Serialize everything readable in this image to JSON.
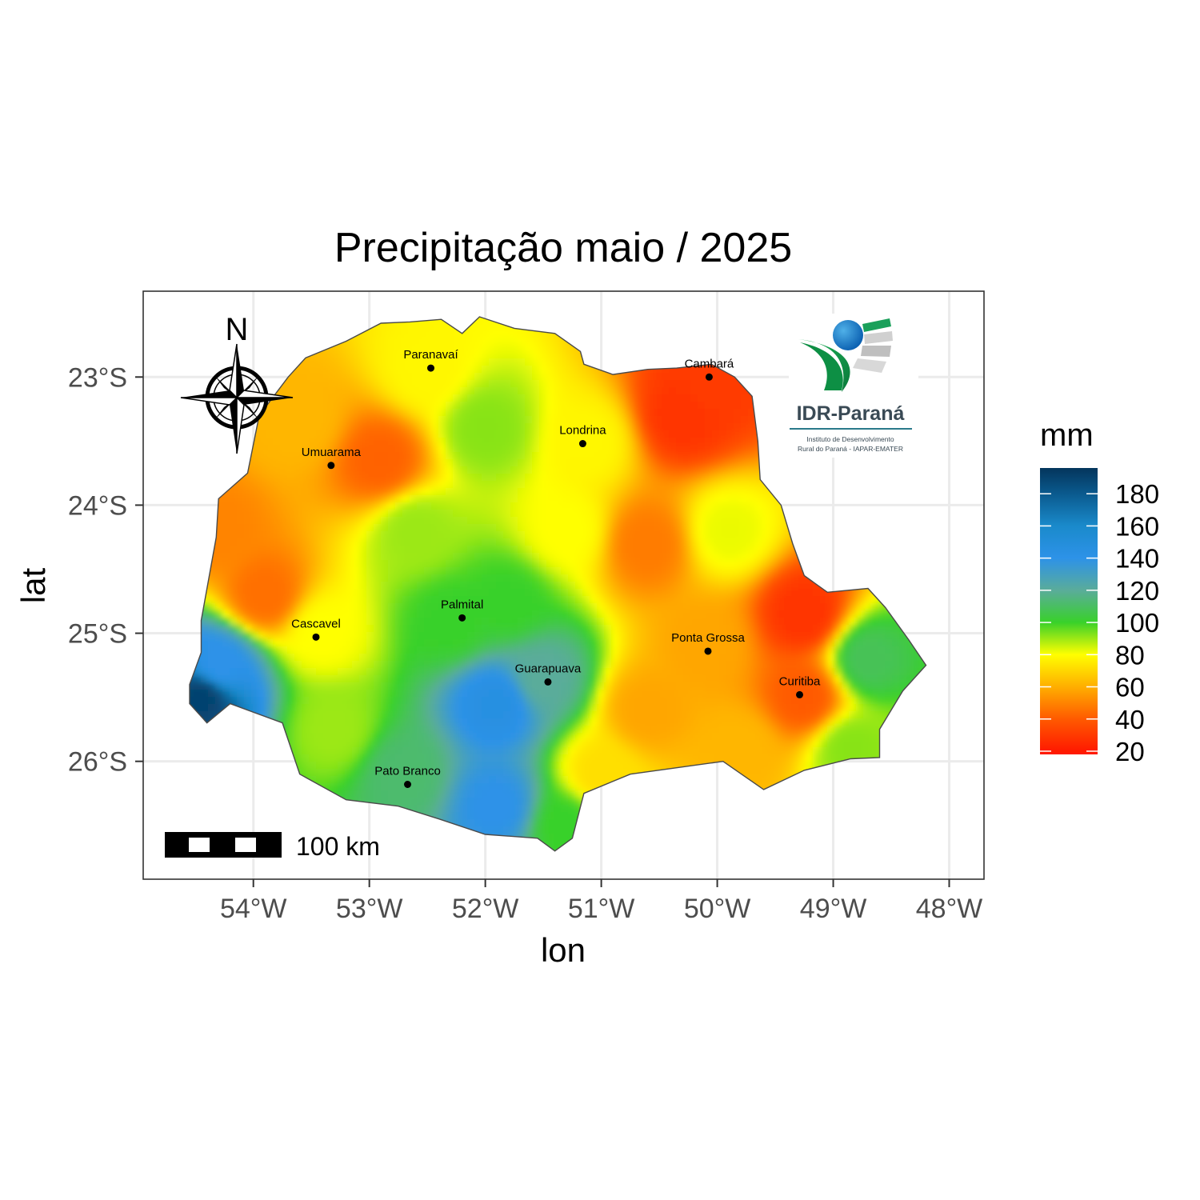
{
  "title": "Precipitação maio / 2025",
  "xlabel": "lon",
  "ylabel": "lat",
  "chart_data": {
    "type": "heatmap",
    "title": "Precipitação maio / 2025",
    "xlabel": "lon",
    "ylabel": "lat",
    "xlim": [
      -54.95,
      -47.7
    ],
    "ylim": [
      -26.92,
      -22.33
    ],
    "x_ticks": [
      -54,
      -53,
      -52,
      -51,
      -50,
      -49,
      -48
    ],
    "x_tick_labels": [
      "54°W",
      "53°W",
      "52°W",
      "51°W",
      "50°W",
      "49°W",
      "48°W"
    ],
    "y_ticks": [
      -23,
      -24,
      -25,
      -26
    ],
    "y_tick_labels": [
      "23°S",
      "24°S",
      "25°S",
      "26°S"
    ],
    "grid": true,
    "legend": {
      "title": "mm",
      "position": "right",
      "min": 18,
      "max": 196,
      "ticks": [
        180,
        160,
        140,
        120,
        100,
        80,
        60,
        40,
        20
      ],
      "tick_labels": [
        "180",
        "160",
        "140",
        "120",
        "100",
        "80",
        "60",
        "40",
        "20"
      ]
    },
    "colorscale": [
      {
        "value": 20,
        "color": "#ff1a00"
      },
      {
        "value": 40,
        "color": "#ff5a00"
      },
      {
        "value": 60,
        "color": "#ffae00"
      },
      {
        "value": 80,
        "color": "#ffff00"
      },
      {
        "value": 100,
        "color": "#39d12a"
      },
      {
        "value": 120,
        "color": "#5aac9a"
      },
      {
        "value": 140,
        "color": "#2d92e8"
      },
      {
        "value": 160,
        "color": "#1a8acb"
      },
      {
        "value": 180,
        "color": "#0a5a8e"
      },
      {
        "value": 196,
        "color": "#04355c"
      }
    ],
    "field_samples": [
      {
        "lon": -53.9,
        "lat": -24.7,
        "value": 45
      },
      {
        "lon": -53.6,
        "lat": -23.35,
        "value": 62
      },
      {
        "lon": -52.9,
        "lat": -23.65,
        "value": 42
      },
      {
        "lon": -52.5,
        "lat": -22.95,
        "value": 78
      },
      {
        "lon": -52.0,
        "lat": -23.4,
        "value": 92
      },
      {
        "lon": -51.1,
        "lat": -23.5,
        "value": 78
      },
      {
        "lon": -50.3,
        "lat": -23.3,
        "value": 28
      },
      {
        "lon": -50.1,
        "lat": -23.1,
        "value": 30
      },
      {
        "lon": -50.6,
        "lat": -24.3,
        "value": 48
      },
      {
        "lon": -49.9,
        "lat": -24.2,
        "value": 82
      },
      {
        "lon": -49.25,
        "lat": -24.85,
        "value": 28
      },
      {
        "lon": -49.25,
        "lat": -25.5,
        "value": 40
      },
      {
        "lon": -48.7,
        "lat": -25.2,
        "value": 108
      },
      {
        "lon": -48.85,
        "lat": -25.9,
        "value": 92
      },
      {
        "lon": -50.6,
        "lat": -25.6,
        "value": 58
      },
      {
        "lon": -49.8,
        "lat": -25.9,
        "value": 62
      },
      {
        "lon": -50.1,
        "lat": -25.1,
        "value": 58
      },
      {
        "lon": -51.9,
        "lat": -25.55,
        "value": 145
      },
      {
        "lon": -51.9,
        "lat": -26.35,
        "value": 140
      },
      {
        "lon": -51.5,
        "lat": -25.35,
        "value": 120
      },
      {
        "lon": -51.8,
        "lat": -24.75,
        "value": 100
      },
      {
        "lon": -52.3,
        "lat": -24.9,
        "value": 100
      },
      {
        "lon": -52.7,
        "lat": -26.1,
        "value": 112
      },
      {
        "lon": -53.3,
        "lat": -25.75,
        "value": 90
      },
      {
        "lon": -52.6,
        "lat": -24.2,
        "value": 90
      },
      {
        "lon": -53.4,
        "lat": -25.0,
        "value": 80
      },
      {
        "lon": -54.45,
        "lat": -25.5,
        "value": 190
      },
      {
        "lon": -54.3,
        "lat": -25.25,
        "value": 140
      },
      {
        "lon": -54.3,
        "lat": -24.2,
        "value": 50
      },
      {
        "lon": -51.0,
        "lat": -26.1,
        "value": 72
      },
      {
        "lon": -51.3,
        "lat": -24.2,
        "value": 80
      },
      {
        "lon": -51.3,
        "lat": -26.5,
        "value": 100
      }
    ],
    "cities": [
      {
        "name": "Paranavaí",
        "lon": -52.47,
        "lat": -22.93
      },
      {
        "name": "Cambará",
        "lon": -50.07,
        "lat": -23.0
      },
      {
        "name": "Londrina",
        "lon": -51.16,
        "lat": -23.52
      },
      {
        "name": "Umuarama",
        "lon": -53.33,
        "lat": -23.69
      },
      {
        "name": "Palmital",
        "lon": -52.2,
        "lat": -24.88
      },
      {
        "name": "Cascavel",
        "lon": -53.46,
        "lat": -25.03
      },
      {
        "name": "Ponta Grossa",
        "lon": -50.08,
        "lat": -25.14
      },
      {
        "name": "Guarapuava",
        "lon": -51.46,
        "lat": -25.38
      },
      {
        "name": "Curitiba",
        "lon": -49.29,
        "lat": -25.48
      },
      {
        "name": "Pato Branco",
        "lon": -52.67,
        "lat": -26.18
      }
    ],
    "boundary": [
      [
        -52.65,
        -22.57
      ],
      [
        -52.38,
        -22.55
      ],
      [
        -52.2,
        -22.66
      ],
      [
        -52.05,
        -22.53
      ],
      [
        -51.75,
        -22.62
      ],
      [
        -51.4,
        -22.66
      ],
      [
        -51.18,
        -22.8
      ],
      [
        -51.15,
        -22.9
      ],
      [
        -50.9,
        -22.98
      ],
      [
        -50.6,
        -22.94
      ],
      [
        -50.35,
        -22.93
      ],
      [
        -50.05,
        -22.9
      ],
      [
        -49.85,
        -23.0
      ],
      [
        -49.7,
        -23.15
      ],
      [
        -49.65,
        -23.5
      ],
      [
        -49.63,
        -23.8
      ],
      [
        -49.45,
        -24.0
      ],
      [
        -49.35,
        -24.3
      ],
      [
        -49.25,
        -24.55
      ],
      [
        -49.05,
        -24.68
      ],
      [
        -48.7,
        -24.65
      ],
      [
        -48.55,
        -24.8
      ],
      [
        -48.35,
        -25.05
      ],
      [
        -48.2,
        -25.25
      ],
      [
        -48.4,
        -25.45
      ],
      [
        -48.6,
        -25.75
      ],
      [
        -48.6,
        -25.97
      ],
      [
        -48.85,
        -25.98
      ],
      [
        -49.25,
        -26.07
      ],
      [
        -49.6,
        -26.22
      ],
      [
        -49.95,
        -26.0
      ],
      [
        -50.35,
        -26.05
      ],
      [
        -50.75,
        -26.1
      ],
      [
        -51.15,
        -26.25
      ],
      [
        -51.25,
        -26.6
      ],
      [
        -51.4,
        -26.7
      ],
      [
        -51.55,
        -26.6
      ],
      [
        -52.0,
        -26.57
      ],
      [
        -52.4,
        -26.45
      ],
      [
        -52.75,
        -26.35
      ],
      [
        -53.2,
        -26.3
      ],
      [
        -53.6,
        -26.1
      ],
      [
        -53.75,
        -25.7
      ],
      [
        -54.2,
        -25.55
      ],
      [
        -54.4,
        -25.7
      ],
      [
        -54.55,
        -25.55
      ],
      [
        -54.55,
        -25.4
      ],
      [
        -54.45,
        -25.15
      ],
      [
        -54.45,
        -24.9
      ],
      [
        -54.32,
        -24.25
      ],
      [
        -54.3,
        -23.95
      ],
      [
        -54.05,
        -23.75
      ],
      [
        -53.95,
        -23.3
      ],
      [
        -53.7,
        -23.0
      ],
      [
        -53.55,
        -22.85
      ],
      [
        -53.2,
        -22.72
      ],
      [
        -52.9,
        -22.58
      ]
    ],
    "scale_bar": {
      "label": "100 km",
      "segments": 5
    },
    "north_arrow": {
      "label": "N"
    }
  },
  "logo": {
    "name": "IDR-Paraná",
    "subtitle_line1": "Instituto de Desenvolvimento",
    "subtitle_line2": "Rural do Paraná - IAPAR-EMATER"
  }
}
